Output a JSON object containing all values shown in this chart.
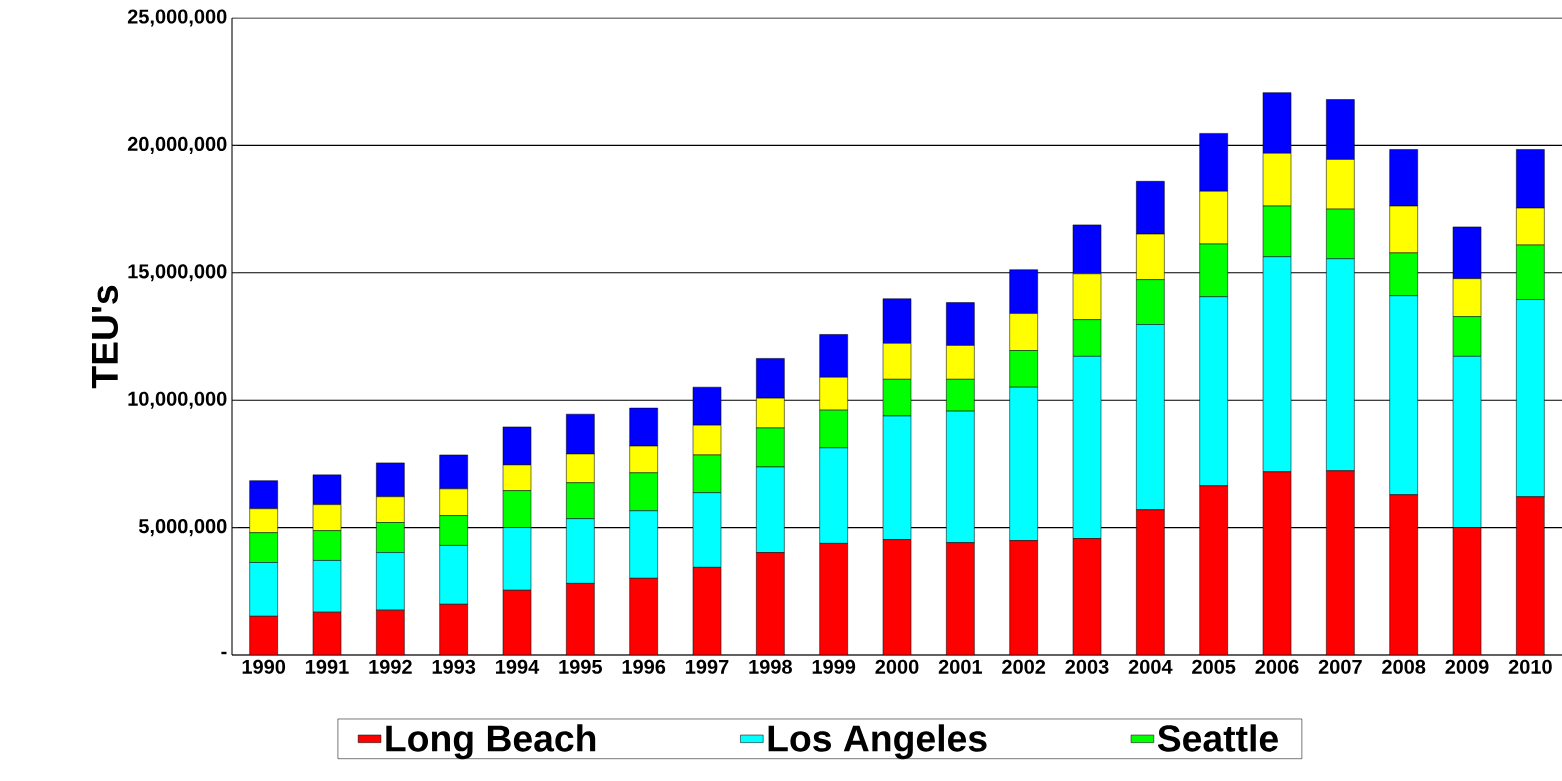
{
  "chart_data": {
    "type": "bar",
    "stacked": true,
    "ylabel": "TEU's",
    "categories": [
      "1990",
      "1991",
      "1992",
      "1993",
      "1994",
      "1995",
      "1996",
      "1997",
      "1998",
      "1999",
      "2000",
      "2001",
      "2002",
      "2003",
      "2004",
      "2005",
      "2006",
      "2007",
      "2008",
      "2009",
      "2010"
    ],
    "series": [
      {
        "name": "Long Beach",
        "color": "#ff0000",
        "values": [
          1520000,
          1680000,
          1760000,
          1990000,
          2540000,
          2810000,
          3010000,
          3440000,
          4020000,
          4380000,
          4530000,
          4410000,
          4490000,
          4570000,
          5700000,
          6640000,
          7190000,
          7230000,
          6290000,
          5000000,
          6210000
        ]
      },
      {
        "name": "Los Angeles",
        "color": "#00ffff",
        "values": [
          2110000,
          2030000,
          2260000,
          2310000,
          2460000,
          2540000,
          2650000,
          2930000,
          3360000,
          3750000,
          4850000,
          5160000,
          6020000,
          7150000,
          7270000,
          7420000,
          8440000,
          8320000,
          7810000,
          6720000,
          7740000
        ]
      },
      {
        "name": "Seattle",
        "color": "#00ff00",
        "values": [
          1170000,
          1170000,
          1180000,
          1170000,
          1450000,
          1410000,
          1490000,
          1480000,
          1530000,
          1480000,
          1440000,
          1250000,
          1440000,
          1440000,
          1760000,
          2070000,
          1990000,
          1950000,
          1680000,
          1560000,
          2140000
        ]
      },
      {
        "color": "#ffff00",
        "values": [
          940000,
          1020000,
          1010000,
          1050000,
          1010000,
          1130000,
          1050000,
          1170000,
          1170000,
          1290000,
          1410000,
          1330000,
          1450000,
          1800000,
          1790000,
          2070000,
          2070000,
          1950000,
          1840000,
          1490000,
          1450000
        ]
      },
      {
        "color": "#0000ff",
        "values": [
          1100000,
          1170000,
          1330000,
          1330000,
          1490000,
          1560000,
          1490000,
          1490000,
          1560000,
          1680000,
          1750000,
          1680000,
          1720000,
          1920000,
          2070000,
          2270000,
          2380000,
          2350000,
          2220000,
          2030000,
          2300000
        ]
      }
    ],
    "ylim": [
      0,
      25000000
    ],
    "yticks": [
      {
        "value": 0,
        "label": "-"
      },
      {
        "value": 5000000,
        "label": "5,000,000"
      },
      {
        "value": 10000000,
        "label": "10,000,000"
      },
      {
        "value": 15000000,
        "label": "15,000,000"
      },
      {
        "value": 20000000,
        "label": "20,000,000"
      },
      {
        "value": 25000000,
        "label": "25,000,000"
      }
    ],
    "grid": "y",
    "legend": "bottom"
  }
}
